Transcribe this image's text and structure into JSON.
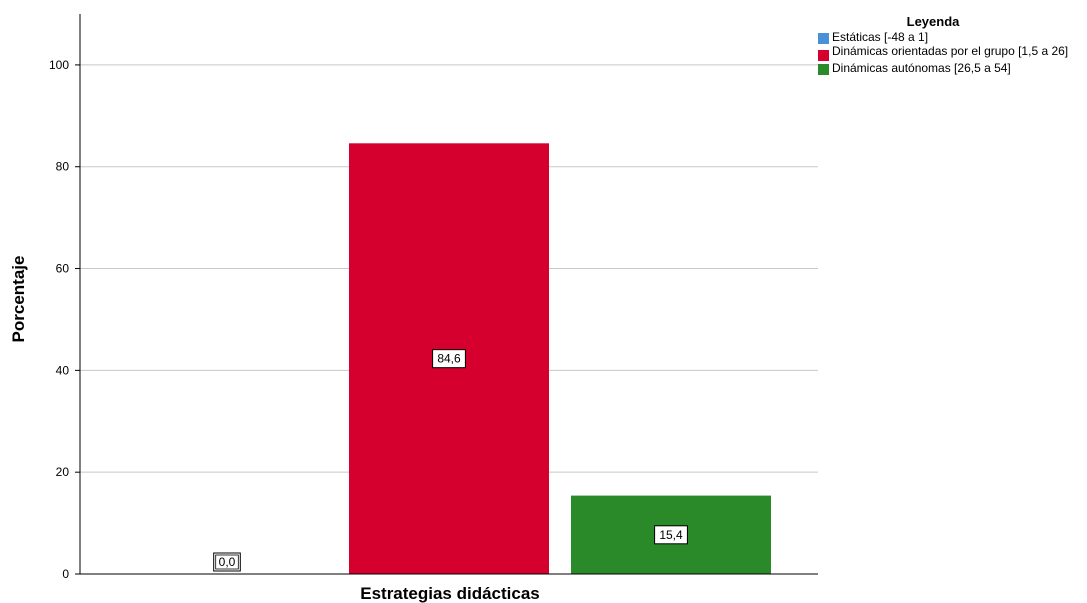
{
  "chart_data": {
    "type": "bar",
    "title": "",
    "xlabel": "Estrategias didácticas",
    "ylabel": "Porcentaje",
    "ylim": [
      0,
      110
    ],
    "yticks": [
      0,
      20,
      40,
      60,
      80,
      100
    ],
    "grid": true,
    "legend_title": "Leyenda",
    "legend_position": "top-right",
    "series": [
      {
        "name": "Estáticas [-48 a 1]",
        "value": 0.0,
        "label": "0,0",
        "color": "#4a90d9"
      },
      {
        "name": "Dinámicas orientadas por el grupo [1,5 a 26]",
        "value": 84.6,
        "label": "84,6",
        "color": "#d6002f"
      },
      {
        "name": "Dinámicas autónomas [26,5 a 54]",
        "value": 15.4,
        "label": "15,4",
        "color": "#2a8a2a"
      }
    ]
  }
}
